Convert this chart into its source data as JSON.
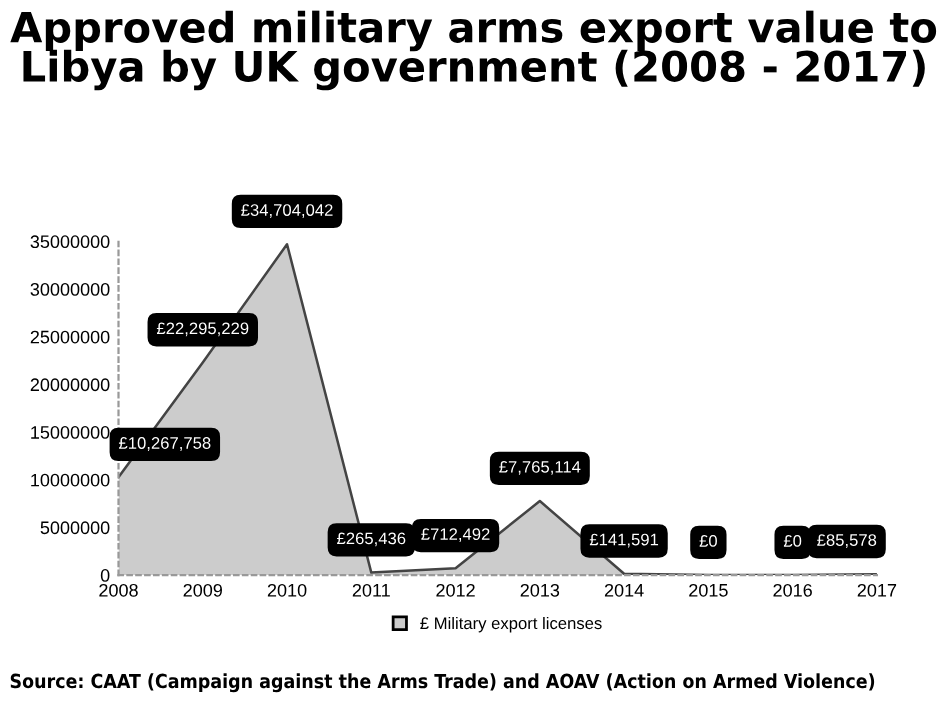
{
  "chart_data": {
    "type": "area",
    "title": "Approved military arms export value to\nLibya by UK government (2008 - 2017)",
    "categories": [
      "2008",
      "2009",
      "2010",
      "2011",
      "2012",
      "2013",
      "2014",
      "2015",
      "2016",
      "2017"
    ],
    "series": [
      {
        "name": "£ Military export licenses",
        "color": "#cccccc",
        "values": [
          10267758,
          22295229,
          34704042,
          265436,
          712492,
          7765114,
          141591,
          0,
          0,
          85578
        ],
        "value_labels": [
          "£10,267,758",
          "£22,295,229",
          "£34,704,042",
          "£265,436",
          "£712,492",
          "£7,765,114",
          "£141,591",
          "£0",
          "£0",
          "£85,578"
        ]
      }
    ],
    "ylim": [
      0,
      35000000
    ],
    "yticks": [
      0,
      5000000,
      10000000,
      15000000,
      20000000,
      25000000,
      30000000,
      35000000
    ],
    "grid": false,
    "legend": "bottom",
    "annotations": [
      "Source: CAAT (Campaign against the Arms Trade) and AOAV (Action on Armed Violence)"
    ]
  }
}
